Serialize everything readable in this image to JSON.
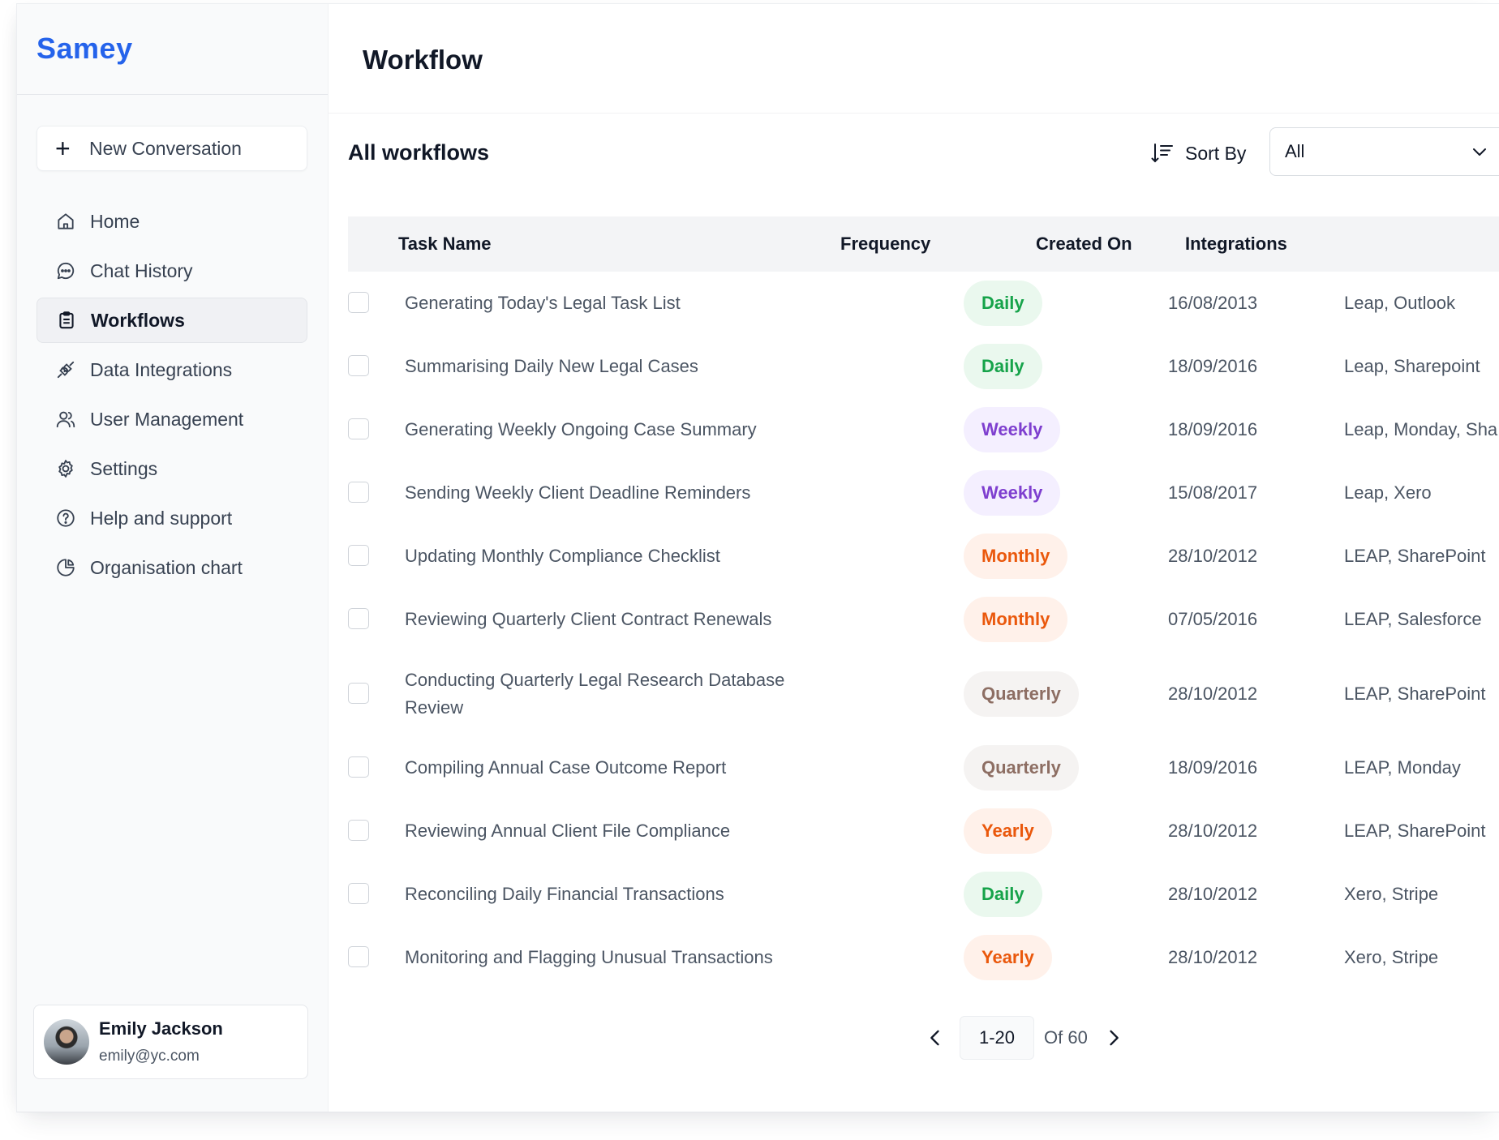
{
  "brand": "Samey",
  "sidebar": {
    "new_conversation": "New Conversation",
    "items": [
      {
        "label": "Home",
        "icon": "home-icon"
      },
      {
        "label": "Chat History",
        "icon": "chat-bubble-icon"
      },
      {
        "label": "Workflows",
        "icon": "clipboard-icon",
        "active": true
      },
      {
        "label": "Data Integrations",
        "icon": "plug-icon"
      },
      {
        "label": "User Management",
        "icon": "users-icon"
      },
      {
        "label": "Settings",
        "icon": "gear-icon"
      },
      {
        "label": "Help and support",
        "icon": "help-circle-icon"
      },
      {
        "label": "Organisation chart",
        "icon": "pie-chart-icon"
      }
    ],
    "user": {
      "name": "Emily Jackson",
      "email": "emily@yc.com"
    }
  },
  "main": {
    "page_title": "Workflow",
    "section_title": "All workflows",
    "sort_by_label": "Sort By",
    "sort_value": "All",
    "columns": [
      "Task Name",
      "Frequency",
      "Created On",
      "Integrations"
    ],
    "rows": [
      {
        "task": "Generating Today's Legal Task List",
        "frequency": "Daily",
        "created": "16/08/2013",
        "integrations": "Leap, Outlook"
      },
      {
        "task": "Summarising Daily New Legal Cases",
        "frequency": "Daily",
        "created": "18/09/2016",
        "integrations": "Leap, Sharepoint"
      },
      {
        "task": "Generating Weekly Ongoing Case Summary",
        "frequency": "Weekly",
        "created": "18/09/2016",
        "integrations": "Leap, Monday, Sha"
      },
      {
        "task": "Sending Weekly Client Deadline Reminders",
        "frequency": "Weekly",
        "created": "15/08/2017",
        "integrations": "Leap, Xero"
      },
      {
        "task": "Updating Monthly Compliance Checklist",
        "frequency": "Monthly",
        "created": "28/10/2012",
        "integrations": "LEAP, SharePoint"
      },
      {
        "task": "Reviewing Quarterly Client Contract Renewals",
        "frequency": "Monthly",
        "created": "07/05/2016",
        "integrations": "LEAP, Salesforce"
      },
      {
        "task": "Conducting Quarterly Legal Research Database Review",
        "frequency": "Quarterly",
        "created": "28/10/2012",
        "integrations": "LEAP, SharePoint"
      },
      {
        "task": "Compiling Annual Case Outcome Report",
        "frequency": "Quarterly",
        "created": "18/09/2016",
        "integrations": "LEAP, Monday"
      },
      {
        "task": "Reviewing Annual Client File Compliance",
        "frequency": "Yearly",
        "created": "28/10/2012",
        "integrations": "LEAP, SharePoint"
      },
      {
        "task": "Reconciling Daily Financial Transactions",
        "frequency": "Daily",
        "created": "28/10/2012",
        "integrations": "Xero, Stripe"
      },
      {
        "task": "Monitoring and Flagging Unusual Transactions",
        "frequency": "Yearly",
        "created": "28/10/2012",
        "integrations": "Xero, Stripe"
      }
    ],
    "pagination": {
      "range": "1-20",
      "total": "Of 60"
    }
  },
  "colors": {
    "brand": "#2563eb",
    "Daily": {
      "bg": "#eaf8ee",
      "fg": "#16a34a"
    },
    "Weekly": {
      "bg": "#f4efff",
      "fg": "#7e3fcf"
    },
    "Monthly": {
      "bg": "#fff1ea",
      "fg": "#ea580c"
    },
    "Quarterly": {
      "bg": "#f5f3f2",
      "fg": "#8d6e63"
    },
    "Yearly": {
      "bg": "#fff1ea",
      "fg": "#ea580c"
    }
  }
}
